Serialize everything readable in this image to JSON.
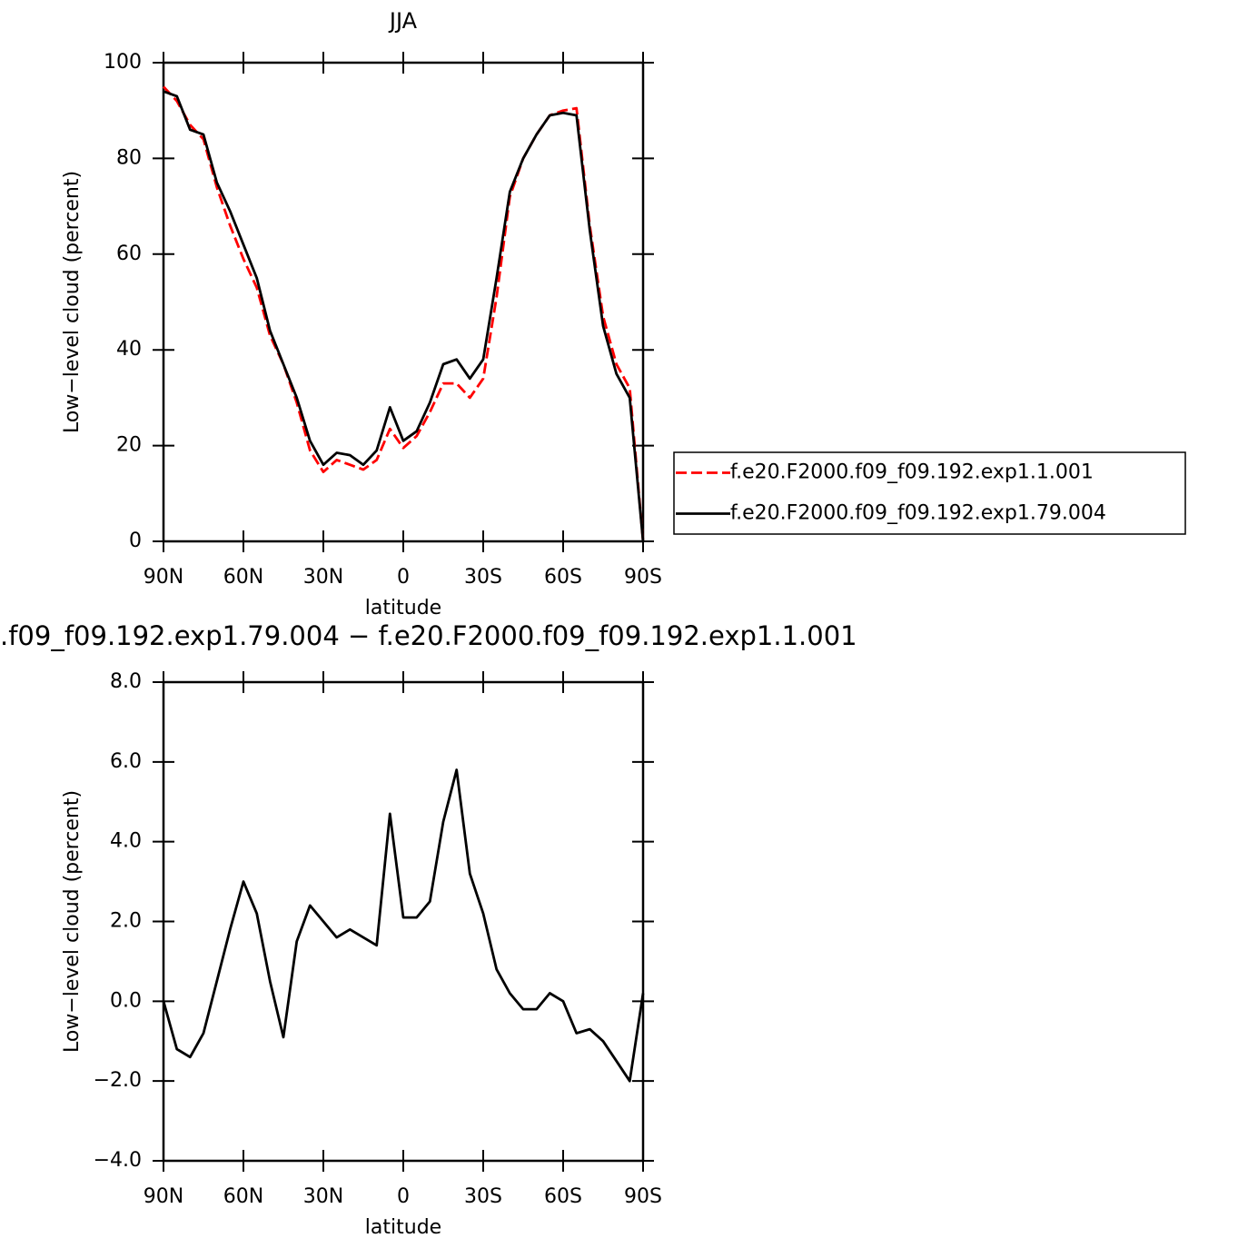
{
  "chart_data": [
    {
      "type": "line",
      "title": "JJA",
      "x_label": "latitude",
      "y_label": "Low−level cloud (percent)",
      "x": [
        90,
        85,
        80,
        75,
        70,
        65,
        60,
        55,
        50,
        45,
        40,
        35,
        30,
        25,
        20,
        15,
        10,
        5,
        0,
        -5,
        -10,
        -15,
        -20,
        -25,
        -30,
        -35,
        -40,
        -45,
        -50,
        -55,
        -60,
        -65,
        -70,
        -75,
        -80,
        -85,
        -90
      ],
      "xlim": [
        90,
        -90
      ],
      "xticks": [
        {
          "value": 90,
          "label": "90N"
        },
        {
          "value": 60,
          "label": "60N"
        },
        {
          "value": 30,
          "label": "30N"
        },
        0,
        {
          "value": -30,
          "label": "30S"
        },
        {
          "value": -60,
          "label": "60S"
        },
        {
          "value": -90,
          "label": "90S"
        }
      ],
      "ylim": [
        0,
        100
      ],
      "yticks": [
        0,
        20,
        40,
        60,
        80,
        100
      ],
      "legend": "right",
      "series": [
        {
          "name": "f.e20.F2000.f09_f09.192.exp1.1.001",
          "color": "#ff0000",
          "line_style": "dashed",
          "values": [
            95,
            92,
            87,
            84,
            74,
            66,
            59,
            53,
            43,
            37,
            29,
            19,
            14.5,
            17,
            16,
            15,
            17,
            23.5,
            19.5,
            22,
            27,
            33,
            33,
            30,
            34,
            51,
            72,
            80,
            85,
            89,
            90,
            90.5,
            66,
            47,
            37,
            32,
            0
          ]
        },
        {
          "name": "f.e20.F2000.f09_f09.192.exp1.79.004",
          "color": "#000000",
          "line_style": "solid",
          "values": [
            94,
            93,
            86,
            85,
            75,
            69,
            62,
            55,
            44,
            37,
            30,
            21,
            16,
            18.5,
            18,
            16,
            19,
            28,
            21,
            23,
            29,
            37,
            38,
            34,
            38,
            55,
            73,
            80,
            85,
            89,
            89.5,
            89,
            65,
            45,
            35,
            30,
            0
          ]
        }
      ]
    },
    {
      "type": "line",
      "title": ".f09_f09.192.exp1.79.004 − f.e20.F2000.f09_f09.192.exp1.1.001",
      "x_label": "latitude",
      "y_label": "Low−level cloud (percent)",
      "x": [
        90,
        85,
        80,
        75,
        70,
        65,
        60,
        55,
        50,
        45,
        40,
        35,
        30,
        25,
        20,
        15,
        10,
        5,
        0,
        -5,
        -10,
        -15,
        -20,
        -25,
        -30,
        -35,
        -40,
        -45,
        -50,
        -55,
        -60,
        -65,
        -70,
        -75,
        -80,
        -85,
        -90
      ],
      "xlim": [
        90,
        -90
      ],
      "xticks": [
        {
          "value": 90,
          "label": "90N"
        },
        {
          "value": 60,
          "label": "60N"
        },
        {
          "value": 30,
          "label": "30N"
        },
        0,
        {
          "value": -30,
          "label": "30S"
        },
        {
          "value": -60,
          "label": "60S"
        },
        {
          "value": -90,
          "label": "90S"
        }
      ],
      "ylim": [
        -4,
        8
      ],
      "yticks": [
        {
          "value": -4,
          "label": "−4.0"
        },
        {
          "value": -2,
          "label": "−2.0"
        },
        {
          "value": 0,
          "label": "0.0"
        },
        {
          "value": 2,
          "label": "2.0"
        },
        {
          "value": 4,
          "label": "4.0"
        },
        {
          "value": 6,
          "label": "6.0"
        },
        {
          "value": 8,
          "label": "8.0"
        }
      ],
      "series": [
        {
          "color": "#000000",
          "line_style": "solid",
          "values": [
            0,
            -1.2,
            -1.4,
            -0.8,
            0.5,
            1.8,
            3.0,
            2.2,
            0.5,
            -0.9,
            1.5,
            2.4,
            2.0,
            1.6,
            1.8,
            1.6,
            1.4,
            4.7,
            2.1,
            2.1,
            2.5,
            4.5,
            5.8,
            3.2,
            2.2,
            0.8,
            0.2,
            -0.2,
            -0.2,
            0.2,
            0.0,
            -0.8,
            -0.7,
            -1.0,
            -1.5,
            -2.0,
            0.2
          ]
        }
      ]
    }
  ]
}
